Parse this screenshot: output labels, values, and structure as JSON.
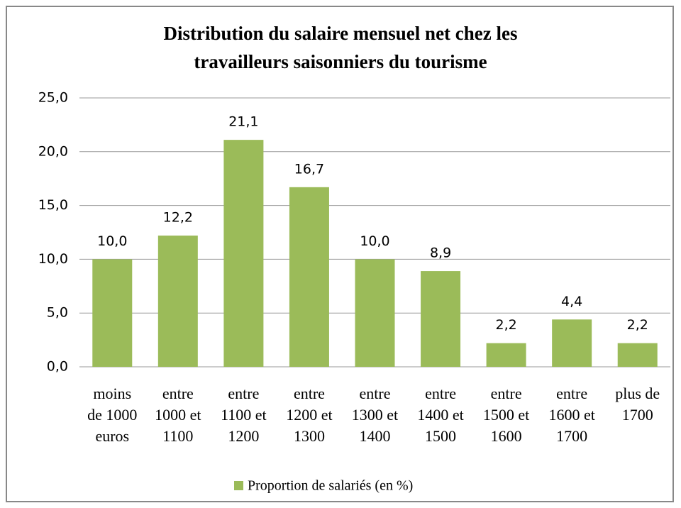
{
  "chart_data": {
    "type": "bar",
    "title": [
      "Distribution du salaire mensuel net chez les",
      "travailleurs saisonniers du tourisme"
    ],
    "categories": [
      [
        "moins",
        "de 1000",
        "euros"
      ],
      [
        "entre",
        "1000 et",
        "1100"
      ],
      [
        "entre",
        "1100 et",
        "1200"
      ],
      [
        "entre",
        "1200 et",
        "1300"
      ],
      [
        "entre",
        "1300 et",
        "1400"
      ],
      [
        "entre",
        "1400 et",
        "1500"
      ],
      [
        "entre",
        "1500 et",
        "1600"
      ],
      [
        "entre",
        "1600 et",
        "1700"
      ],
      [
        "plus de",
        "1700"
      ]
    ],
    "series": [
      {
        "name": "Proportion de salariés (en %)",
        "color": "#9bbb59",
        "values": [
          10.0,
          12.2,
          21.1,
          16.7,
          10.0,
          8.9,
          2.2,
          4.4,
          2.2
        ],
        "value_labels": [
          "10,0",
          "12,2",
          "21,1",
          "16,7",
          "10,0",
          "8,9",
          "2,2",
          "4,4",
          "2,2"
        ]
      }
    ],
    "ylim": [
      0,
      25
    ],
    "yticks": [
      {
        "value": 0,
        "label": "0,0"
      },
      {
        "value": 5,
        "label": "5,0"
      },
      {
        "value": 10,
        "label": "10,0"
      },
      {
        "value": 15,
        "label": "15,0"
      },
      {
        "value": 20,
        "label": "20,0"
      },
      {
        "value": 25,
        "label": "25,0"
      }
    ],
    "grid": true,
    "legend": "bottom"
  }
}
